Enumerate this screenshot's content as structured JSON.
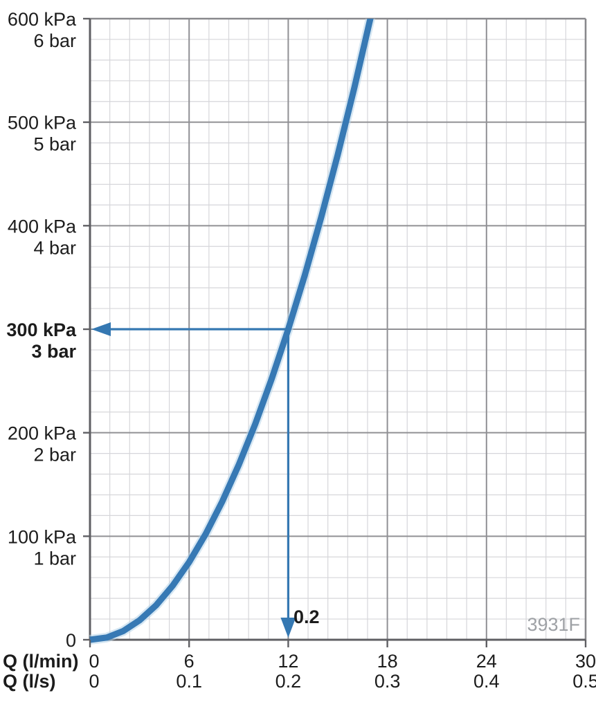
{
  "chart_data": {
    "type": "line",
    "title": "",
    "watermark": "3931F",
    "x_axis": {
      "row1_label": "Q (l/min)",
      "row2_label": "Q (l/s)",
      "range_lmin": [
        0,
        30
      ],
      "minor_step_lmin": 1.2,
      "major_step_lmin": 6,
      "ticks": [
        {
          "value": 0,
          "lmin": "0",
          "ls": "0"
        },
        {
          "value": 6,
          "lmin": "6",
          "ls": "0.1"
        },
        {
          "value": 12,
          "lmin": "12",
          "ls": "0.2"
        },
        {
          "value": 18,
          "lmin": "18",
          "ls": "0.3"
        },
        {
          "value": 24,
          "lmin": "24",
          "ls": "0.4"
        },
        {
          "value": 30,
          "lmin": "30",
          "ls": "0.5"
        }
      ]
    },
    "y_axis": {
      "range_kpa": [
        0,
        600
      ],
      "minor_step_kpa": 20,
      "major_step_kpa": 100,
      "zero_label": "0",
      "ticks": [
        {
          "value": 600,
          "kpa": "600 kPa",
          "bar": "6 bar",
          "bold": false
        },
        {
          "value": 500,
          "kpa": "500 kPa",
          "bar": "5 bar",
          "bold": false
        },
        {
          "value": 400,
          "kpa": "400 kPa",
          "bar": "4 bar",
          "bold": false
        },
        {
          "value": 300,
          "kpa": "300 kPa",
          "bar": "3 bar",
          "bold": true
        },
        {
          "value": 200,
          "kpa": "200 kPa",
          "bar": "2 bar",
          "bold": false
        },
        {
          "value": 100,
          "kpa": "100 kPa",
          "bar": "1 bar",
          "bold": false
        }
      ]
    },
    "series": [
      {
        "name": "flow-pressure-curve",
        "points_lmin_kpa": [
          [
            0,
            0
          ],
          [
            1,
            2.1
          ],
          [
            2,
            8.3
          ],
          [
            3,
            18.8
          ],
          [
            4,
            33.3
          ],
          [
            5,
            52.1
          ],
          [
            6,
            75
          ],
          [
            7,
            102.1
          ],
          [
            8,
            133.3
          ],
          [
            9,
            168.8
          ],
          [
            10,
            208.3
          ],
          [
            11,
            252.1
          ],
          [
            12,
            300
          ],
          [
            13,
            352.1
          ],
          [
            14,
            408.3
          ],
          [
            15,
            468.8
          ],
          [
            16,
            533.3
          ],
          [
            17,
            602.1
          ]
        ]
      }
    ],
    "annotation": {
      "pressure_kpa": 300,
      "flow_lmin": 12,
      "flow_label": "0.2"
    },
    "colors": {
      "curve": "#3779b4",
      "curve_halo": "#b5d3e9",
      "arrow": "#3578b2",
      "grid_minor": "#d6d6da",
      "grid_major": "#909094",
      "border": "#88888c",
      "axis": "#5f5f63",
      "text": "#1c1c1c",
      "watermark": "#9ea1a5",
      "background": "#ffffff"
    }
  }
}
